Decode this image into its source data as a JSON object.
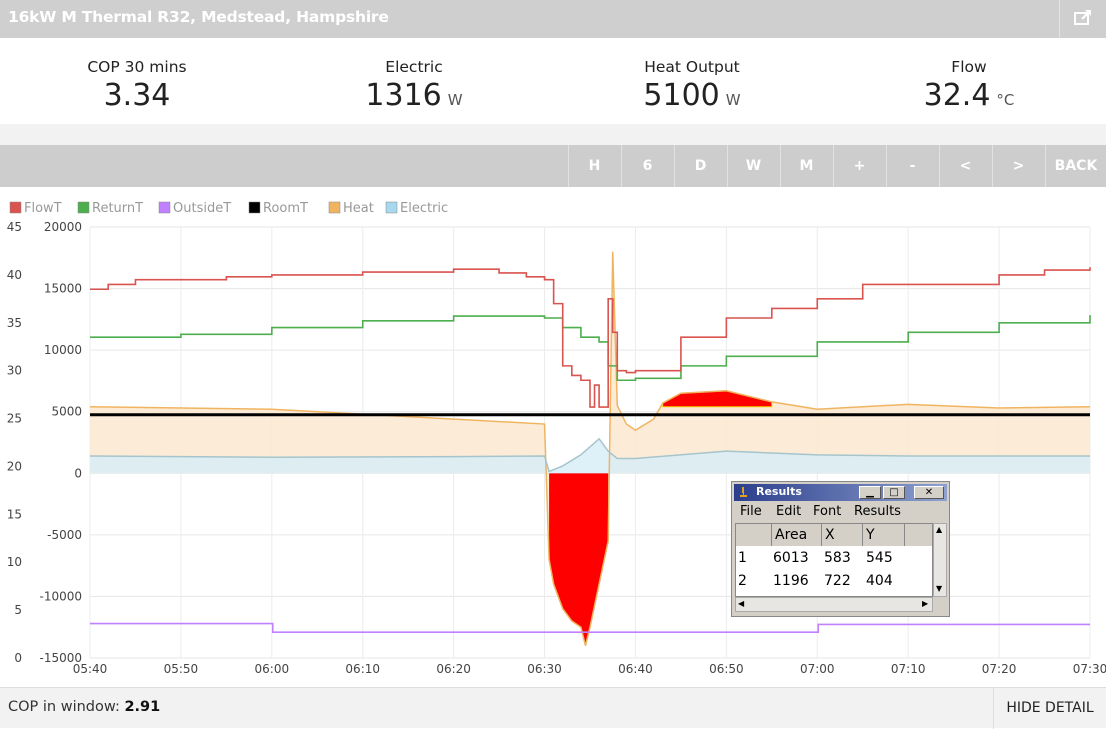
{
  "header": {
    "title": "16kW M Thermal R32, Medstead, Hampshire",
    "share_icon": "share-icon"
  },
  "stats": [
    {
      "label": "COP 30 mins",
      "value": "3.34",
      "unit": ""
    },
    {
      "label": "Electric",
      "value": "1316",
      "unit": "W"
    },
    {
      "label": "Heat Output",
      "value": "5100",
      "unit": "W"
    },
    {
      "label": "Flow",
      "value": "32.4",
      "unit": "°C"
    }
  ],
  "nav": {
    "buttons": [
      "H",
      "6",
      "D",
      "W",
      "M",
      "+",
      "-",
      "<",
      ">",
      "BACK"
    ]
  },
  "legend": [
    {
      "name": "FlowT",
      "color": "#d9534f"
    },
    {
      "name": "ReturnT",
      "color": "#4cae4c"
    },
    {
      "name": "OutsideT",
      "color": "#c080ff"
    },
    {
      "name": "RoomT",
      "color": "#000000"
    },
    {
      "name": "Heat",
      "color": "#f0b460"
    },
    {
      "name": "Electric",
      "color": "#a8d8f0"
    }
  ],
  "chart_data": {
    "type": "line",
    "title": "",
    "x_tick_labels": [
      "05:40",
      "05:50",
      "06:00",
      "06:10",
      "06:20",
      "06:30",
      "06:40",
      "06:50",
      "07:00",
      "07:10",
      "07:20",
      "07:30"
    ],
    "y_left": {
      "range": [
        0,
        45
      ],
      "ticks": [
        0,
        5,
        10,
        15,
        20,
        25,
        30,
        35,
        40,
        45
      ]
    },
    "y_right": {
      "range": [
        -15000,
        20000
      ],
      "ticks": [
        -15000,
        -10000,
        -5000,
        0,
        5000,
        10000,
        15000,
        20000
      ]
    },
    "series": [
      {
        "name": "FlowT",
        "axis": "temperature",
        "x": [
          "05:40",
          "05:42",
          "05:45",
          "05:55",
          "06:00",
          "06:10",
          "06:20",
          "06:25",
          "06:28",
          "06:30",
          "06:31",
          "06:32",
          "06:33",
          "06:34",
          "06:35",
          "06:35.5",
          "06:36",
          "06:37",
          "06:37.5",
          "06:38",
          "06:39",
          "06:40",
          "06:45",
          "06:50",
          "06:55",
          "07:00",
          "07:05",
          "07:10",
          "07:20",
          "07:25",
          "07:30"
        ],
        "values": [
          38.5,
          39,
          39.5,
          39.8,
          40,
          40.3,
          40.6,
          40.2,
          39.8,
          39.5,
          37,
          30.5,
          29.5,
          29,
          26.2,
          28.5,
          26.2,
          37.5,
          34,
          30,
          29.8,
          30,
          33.5,
          35.5,
          36.5,
          37.5,
          39,
          39,
          40,
          40.5,
          40.8
        ]
      },
      {
        "name": "ReturnT",
        "axis": "temperature",
        "x": [
          "05:40",
          "05:50",
          "06:00",
          "06:10",
          "06:20",
          "06:28",
          "06:30",
          "06:32",
          "06:34",
          "06:36",
          "06:37",
          "06:38",
          "06:40",
          "06:45",
          "06:50",
          "07:00",
          "07:10",
          "07:20",
          "07:30"
        ],
        "values": [
          33.5,
          33.8,
          34.5,
          35.2,
          35.7,
          35.7,
          35.5,
          34.5,
          33.5,
          33,
          30.5,
          29,
          29.2,
          30.5,
          31.5,
          33,
          34,
          35,
          35.8
        ]
      },
      {
        "name": "OutsideT",
        "axis": "temperature",
        "x": [
          "05:40",
          "06:00",
          "06:00.1",
          "07:00",
          "07:00.1",
          "07:30"
        ],
        "values": [
          3.6,
          3.6,
          2.7,
          2.7,
          3.5,
          3.5
        ]
      },
      {
        "name": "RoomT",
        "axis": "temperature",
        "x": [
          "05:40",
          "07:30"
        ],
        "values": [
          25.4,
          25.4
        ]
      },
      {
        "name": "Heat",
        "axis": "power",
        "x": [
          "05:40",
          "06:00",
          "06:30",
          "06:30.5",
          "06:31",
          "06:32",
          "06:33",
          "06:34",
          "06:34.5",
          "06:35",
          "06:36",
          "06:37",
          "06:37.5",
          "06:38",
          "06:39",
          "06:40",
          "06:42",
          "06:43",
          "06:45",
          "06:50",
          "06:55",
          "07:00",
          "07:10",
          "07:20",
          "07:30"
        ],
        "values": [
          5400,
          5200,
          4000,
          -7000,
          -9000,
          -11000,
          -12000,
          -12500,
          -14000,
          -12500,
          -9000,
          -5500,
          18000,
          5500,
          4000,
          3500,
          4400,
          5700,
          6500,
          6700,
          5800,
          5200,
          5600,
          5300,
          5400
        ]
      },
      {
        "name": "Electric",
        "axis": "power",
        "x": [
          "05:40",
          "06:00",
          "06:20",
          "06:30",
          "06:30.5",
          "06:32",
          "06:34",
          "06:36",
          "06:37",
          "06:38",
          "06:40",
          "06:50",
          "07:00",
          "07:10",
          "07:30"
        ],
        "values": [
          1400,
          1300,
          1350,
          1400,
          150,
          600,
          1500,
          2800,
          1800,
          1200,
          1200,
          1800,
          1500,
          1400,
          1400
        ]
      }
    ]
  },
  "results_window": {
    "title": "Results",
    "menu": [
      "File",
      "Edit",
      "Font",
      "Results"
    ],
    "columns": [
      "",
      "Area",
      "X",
      "Y"
    ],
    "rows": [
      [
        "1",
        "6013",
        "583",
        "545"
      ],
      [
        "2",
        "1196",
        "722",
        "404"
      ]
    ]
  },
  "footer": {
    "cop_label": "COP in window:",
    "cop_value": "2.91",
    "hide_label": "HIDE DETAIL"
  }
}
